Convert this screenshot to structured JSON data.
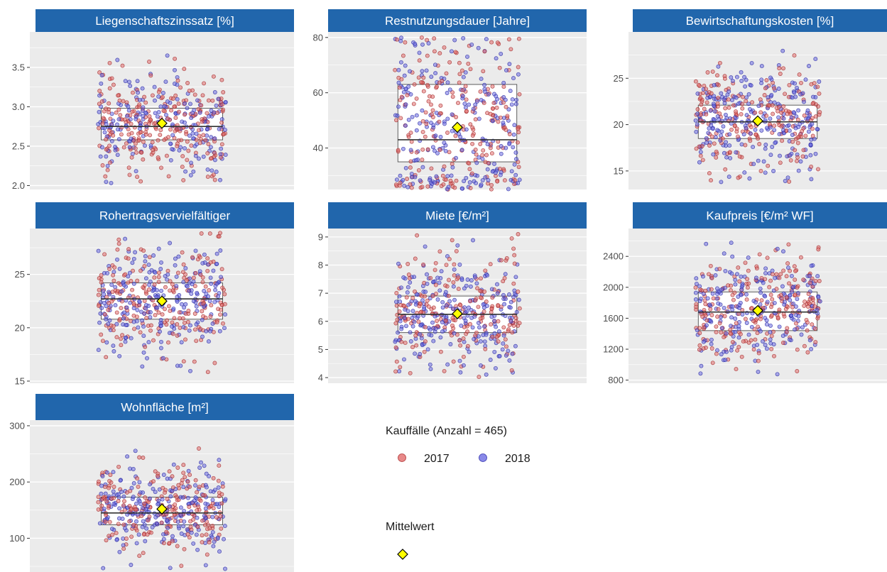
{
  "figure": {
    "legend": {
      "group_title": "Kauffälle (Anzahl = 465)",
      "group_items": [
        {
          "label": "2017",
          "color": "#e26b6b"
        },
        {
          "label": "2018",
          "color": "#6b6be2"
        }
      ],
      "mean_title": "Mittelwert",
      "mean_marker_color": "#ffff00"
    },
    "colors": {
      "strip": "#2166ac",
      "panel_bg": "#ebebeb",
      "grid": "#ffffff",
      "box_fill": "#ffffff",
      "box_stroke": "#4d4d4d"
    }
  },
  "chart_data": [
    {
      "type": "boxplot-jitter",
      "title": "Liegenschaftszinssatz [%]",
      "ylim": [
        1.95,
        3.95
      ],
      "yticks": [
        "2.0",
        "2.5",
        "3.0",
        "3.5"
      ],
      "box": {
        "q1": 2.58,
        "median": 2.75,
        "q3": 2.98
      },
      "mean": 2.79,
      "points": {
        "n": 465,
        "center": 2.78,
        "spread": 0.32,
        "min": 2.02,
        "max": 3.84
      }
    },
    {
      "type": "boxplot-jitter",
      "title": "Restnutzungsdauer [Jahre]",
      "ylim": [
        25,
        82
      ],
      "yticks": [
        "40",
        "60",
        "80"
      ],
      "box": {
        "q1": 35,
        "median": 43,
        "q3": 63
      },
      "mean": 47.5,
      "points": {
        "n": 465,
        "center": 48,
        "spread": 18,
        "min": 25,
        "max": 80
      }
    },
    {
      "type": "boxplot-jitter",
      "title": "Bewirtschaftungskosten [%]",
      "ylim": [
        13,
        30
      ],
      "yticks": [
        "15",
        "20",
        "25"
      ],
      "box": {
        "q1": 18.5,
        "median": 20.3,
        "q3": 22.1
      },
      "mean": 20.4,
      "points": {
        "n": 465,
        "center": 20.5,
        "spread": 2.8,
        "min": 13.6,
        "max": 29.2
      }
    },
    {
      "type": "boxplot-jitter",
      "title": "Rohertragsvervielfältiger",
      "ylim": [
        14.8,
        29.3
      ],
      "yticks": [
        "15",
        "20",
        "25"
      ],
      "box": {
        "q1": 20.8,
        "median": 22.7,
        "q3": 24.2
      },
      "mean": 22.5,
      "points": {
        "n": 465,
        "center": 22.5,
        "spread": 2.6,
        "min": 15.1,
        "max": 28.9
      }
    },
    {
      "type": "boxplot-jitter",
      "title": "Miete [€/m²]",
      "ylim": [
        3.8,
        9.3
      ],
      "yticks": [
        "4",
        "5",
        "6",
        "7",
        "8",
        "9"
      ],
      "box": {
        "q1": 5.6,
        "median": 6.25,
        "q3": 6.9
      },
      "mean": 6.27,
      "points": {
        "n": 465,
        "center": 6.3,
        "spread": 0.95,
        "min": 4.0,
        "max": 9.1
      }
    },
    {
      "type": "boxplot-jitter",
      "title": "Kaufpreis [€/m² WF]",
      "ylim": [
        760,
        2760
      ],
      "yticks": [
        "800",
        "1200",
        "1600",
        "2000",
        "2400"
      ],
      "box": {
        "q1": 1440,
        "median": 1680,
        "q3": 1940
      },
      "mean": 1700,
      "points": {
        "n": 465,
        "center": 1710,
        "spread": 360,
        "min": 870,
        "max": 2660
      }
    },
    {
      "type": "boxplot-jitter",
      "title": "Wohnfläche [m²]",
      "ylim": [
        40,
        310
      ],
      "yticks": [
        "100",
        "200",
        "300"
      ],
      "box": {
        "q1": 124,
        "median": 145,
        "q3": 173
      },
      "mean": 152,
      "points": {
        "n": 465,
        "center": 150,
        "spread": 38,
        "min": 45,
        "max": 305
      }
    }
  ]
}
